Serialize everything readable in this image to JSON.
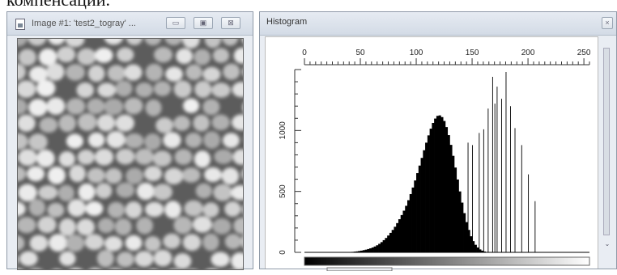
{
  "caption_text": "компенсации.",
  "image_window": {
    "title": "Image #1: 'test2_togray' ..."
  },
  "histogram_window": {
    "title": "Histogram",
    "x_ticks": [
      "0",
      "50",
      "100",
      "150",
      "200",
      "250"
    ],
    "y_ticks": [
      "0",
      "500",
      "1000"
    ]
  },
  "chart_data": {
    "type": "bar",
    "x_range": [
      0,
      255
    ],
    "y_range": [
      0,
      1500
    ],
    "x_ticks": [
      0,
      50,
      100,
      150,
      200,
      250
    ],
    "y_ticks": [
      0,
      500,
      1000
    ],
    "bins_start": 0,
    "bins_step": 2,
    "values": [
      0,
      0,
      0,
      0,
      0,
      0,
      0,
      0,
      0,
      0,
      0,
      0,
      0,
      0,
      0,
      0,
      0,
      0,
      0,
      2,
      3,
      4,
      6,
      8,
      11,
      14,
      18,
      22,
      27,
      33,
      40,
      48,
      58,
      70,
      84,
      100,
      118,
      138,
      160,
      184,
      210,
      240,
      272,
      306,
      342,
      382,
      428,
      478,
      532,
      590,
      650,
      712,
      775,
      838,
      900,
      960,
      1015,
      1062,
      1098,
      1120,
      1124,
      1110,
      1078,
      1028,
      962,
      882,
      792,
      696,
      598,
      500,
      408,
      322,
      248,
      184,
      132,
      92,
      62,
      40,
      24,
      14,
      7,
      3,
      1,
      0,
      0,
      0,
      0,
      0,
      0,
      0,
      0,
      0,
      0,
      0,
      0,
      0,
      0,
      0,
      0,
      0,
      0,
      0,
      0,
      0,
      0,
      0,
      0,
      0,
      0,
      0,
      0,
      0,
      0,
      0,
      0,
      0,
      0,
      0,
      0,
      0,
      0,
      0,
      0,
      0,
      0,
      0,
      0
    ],
    "spikes": [
      {
        "x": 146,
        "value": 900
      },
      {
        "x": 150,
        "value": 880
      },
      {
        "x": 156,
        "value": 980
      },
      {
        "x": 160,
        "value": 1010
      },
      {
        "x": 164,
        "value": 1180
      },
      {
        "x": 168,
        "value": 1440
      },
      {
        "x": 170,
        "value": 1220
      },
      {
        "x": 172,
        "value": 1360
      },
      {
        "x": 176,
        "value": 1260
      },
      {
        "x": 180,
        "value": 1480
      },
      {
        "x": 184,
        "value": 1200
      },
      {
        "x": 188,
        "value": 1020
      },
      {
        "x": 194,
        "value": 880
      },
      {
        "x": 200,
        "value": 640
      },
      {
        "x": 206,
        "value": 420
      }
    ]
  },
  "colors": {
    "window_bg": "#e9edf3",
    "bar_color": "#000000",
    "grad_start": "#000000",
    "grad_end": "#ffffff"
  }
}
